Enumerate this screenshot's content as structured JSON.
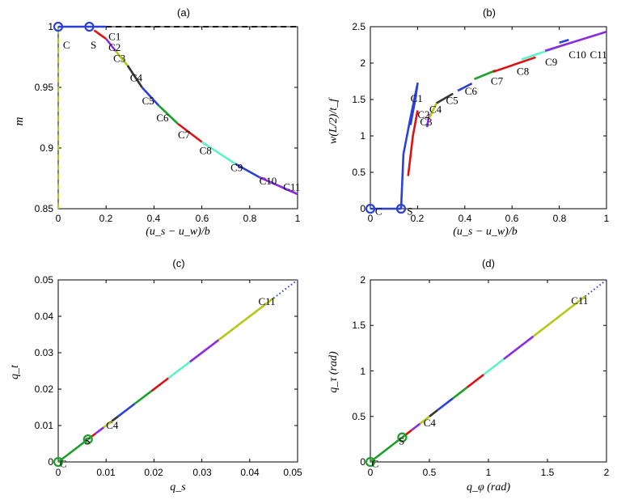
{
  "chart_data": [
    {
      "type": "line",
      "title": "(a)",
      "xlabel": "(u_s − u_w)/b",
      "ylabel": "m",
      "xlim": [
        0,
        1
      ],
      "ylim": [
        0.85,
        1.0
      ],
      "xticks": [
        "0",
        "0.2",
        "0.4",
        "0.6",
        "0.8",
        "1"
      ],
      "yticks": [
        "0.85",
        "0.9",
        "0.95",
        "1"
      ],
      "series": [
        {
          "name": "vertical-ref",
          "color": "#a6cc1f",
          "dash": true,
          "points": [
            [
              0,
              0.85
            ],
            [
              0,
              1.0
            ]
          ]
        },
        {
          "name": "horizontal-ref",
          "color": "#1a1a1a",
          "dash": true,
          "points": [
            [
              0.2,
              1.0
            ],
            [
              1.0,
              1.0
            ]
          ]
        },
        {
          "name": "C-S",
          "color": "#2a40d9",
          "points": [
            [
              0,
              1.0
            ],
            [
              0.13,
              1.0
            ]
          ]
        },
        {
          "name": "S-C1",
          "color": "#2a40d9",
          "points": [
            [
              0.13,
              1.0
            ],
            [
              0.2,
              1.0
            ]
          ]
        },
        {
          "name": "C1-C2",
          "color": "#dd1111",
          "points": [
            [
              0.15,
              0.997
            ],
            [
              0.2,
              0.99
            ]
          ]
        },
        {
          "name": "C2-C3",
          "color": "#8a2be2",
          "points": [
            [
              0.2,
              0.99
            ],
            [
              0.24,
              0.98
            ]
          ]
        },
        {
          "name": "C3-C4",
          "color": "#b5c81a",
          "points": [
            [
              0.24,
              0.98
            ],
            [
              0.29,
              0.968
            ]
          ]
        },
        {
          "name": "C4-C5",
          "color": "#333333",
          "points": [
            [
              0.29,
              0.968
            ],
            [
              0.35,
              0.95
            ]
          ]
        },
        {
          "name": "C5-C6",
          "color": "#2a40d9",
          "points": [
            [
              0.35,
              0.95
            ],
            [
              0.42,
              0.935
            ]
          ]
        },
        {
          "name": "C6-C7",
          "color": "#1e9e2a",
          "points": [
            [
              0.42,
              0.935
            ],
            [
              0.5,
              0.92
            ]
          ]
        },
        {
          "name": "C7-C8",
          "color": "#dd1111",
          "points": [
            [
              0.5,
              0.92
            ],
            [
              0.6,
              0.905
            ]
          ]
        },
        {
          "name": "C8-C9",
          "color": "#5ef0c8",
          "points": [
            [
              0.6,
              0.905
            ],
            [
              0.74,
              0.887
            ]
          ]
        },
        {
          "name": "C9-C10",
          "color": "#2a40d9",
          "points": [
            [
              0.74,
              0.887
            ],
            [
              0.84,
              0.876
            ]
          ]
        },
        {
          "name": "C10-C11",
          "color": "#8a2be2",
          "points": [
            [
              0.84,
              0.876
            ],
            [
              1.0,
              0.862
            ]
          ]
        }
      ],
      "markers": [
        {
          "x": 0,
          "y": 1.0,
          "color": "#2a40d9"
        },
        {
          "x": 0.13,
          "y": 1.0,
          "color": "#2a40d9"
        }
      ],
      "labels": [
        {
          "text": "C",
          "x": 0.02,
          "y": 0.99
        },
        {
          "text": "S",
          "x": 0.135,
          "y": 0.99
        },
        {
          "text": "C1",
          "x": 0.21,
          "y": 0.997
        },
        {
          "text": "C2",
          "x": 0.21,
          "y": 0.988
        },
        {
          "text": "C3",
          "x": 0.23,
          "y": 0.979
        },
        {
          "text": "C4",
          "x": 0.3,
          "y": 0.963
        },
        {
          "text": "C5",
          "x": 0.35,
          "y": 0.944
        },
        {
          "text": "C6",
          "x": 0.41,
          "y": 0.93
        },
        {
          "text": "C7",
          "x": 0.5,
          "y": 0.916
        },
        {
          "text": "C8",
          "x": 0.59,
          "y": 0.903
        },
        {
          "text": "C9",
          "x": 0.72,
          "y": 0.889
        },
        {
          "text": "C10",
          "x": 0.84,
          "y": 0.878
        },
        {
          "text": "C11",
          "x": 0.94,
          "y": 0.873
        }
      ]
    },
    {
      "type": "line",
      "title": "(b)",
      "xlabel": "(u_s − u_w)/b",
      "ylabel": "w(L/2)/t_f",
      "xlim": [
        0,
        1
      ],
      "ylim": [
        0,
        2.5
      ],
      "xticks": [
        "0",
        "0.2",
        "0.4",
        "0.6",
        "0.8",
        "1"
      ],
      "yticks": [
        "0",
        "0.5",
        "1",
        "1.5",
        "2",
        "2.5"
      ],
      "series": [
        {
          "name": "C-S",
          "color": "#2a40d9",
          "points": [
            [
              0,
              0
            ],
            [
              0.13,
              0
            ]
          ]
        },
        {
          "name": "S-C1",
          "color": "#2a40d9",
          "points": [
            [
              0.13,
              0
            ],
            [
              0.14,
              0.75
            ],
            [
              0.17,
              1.25
            ],
            [
              0.2,
              1.72
            ],
            [
              0.19,
              1.5
            ],
            [
              0.17,
              1.15
            ]
          ]
        },
        {
          "name": "C1-C2",
          "color": "#dd1111",
          "points": [
            [
              0.16,
              0.45
            ],
            [
              0.18,
              1.0
            ],
            [
              0.2,
              1.35
            ]
          ]
        },
        {
          "name": "C2-C3",
          "color": "#8a2be2",
          "points": [
            [
              0.24,
              1.12
            ],
            [
              0.25,
              1.3
            ]
          ]
        },
        {
          "name": "C3-C4",
          "color": "#b5c81a",
          "points": [
            [
              0.25,
              1.25
            ],
            [
              0.28,
              1.45
            ]
          ]
        },
        {
          "name": "C4-C5",
          "color": "#333333",
          "points": [
            [
              0.28,
              1.45
            ],
            [
              0.35,
              1.58
            ]
          ]
        },
        {
          "name": "C5-C6",
          "color": "#2a40d9",
          "points": [
            [
              0.37,
              1.62
            ],
            [
              0.43,
              1.72
            ]
          ]
        },
        {
          "name": "C6-C7",
          "color": "#1e9e2a",
          "points": [
            [
              0.44,
              1.78
            ],
            [
              0.53,
              1.9
            ]
          ]
        },
        {
          "name": "C7-C8",
          "color": "#dd1111",
          "points": [
            [
              0.52,
              1.88
            ],
            [
              0.7,
              2.08
            ]
          ]
        },
        {
          "name": "C8-C9",
          "color": "#5ef0c8",
          "points": [
            [
              0.64,
              2.05
            ],
            [
              0.84,
              2.27
            ]
          ]
        },
        {
          "name": "C9-C10",
          "color": "#2a40d9",
          "points": [
            [
              0.8,
              2.28
            ],
            [
              0.84,
              2.32
            ]
          ]
        },
        {
          "name": "C10-C11",
          "color": "#8a2be2",
          "points": [
            [
              0.74,
              2.17
            ],
            [
              1.0,
              2.43
            ]
          ]
        }
      ],
      "markers": [
        {
          "x": 0,
          "y": 0,
          "color": "#2a40d9"
        },
        {
          "x": 0.13,
          "y": 0,
          "color": "#2a40d9"
        }
      ],
      "labels": [
        {
          "text": "C",
          "x": 0.02,
          "y": 0.05
        },
        {
          "text": "S",
          "x": 0.155,
          "y": 0.05
        },
        {
          "text": "C1",
          "x": 0.17,
          "y": 1.6
        },
        {
          "text": "C2",
          "x": 0.2,
          "y": 1.38
        },
        {
          "text": "C3",
          "x": 0.21,
          "y": 1.28
        },
        {
          "text": "C4",
          "x": 0.25,
          "y": 1.45
        },
        {
          "text": "C5",
          "x": 0.32,
          "y": 1.57
        },
        {
          "text": "C6",
          "x": 0.4,
          "y": 1.7
        },
        {
          "text": "C7",
          "x": 0.51,
          "y": 1.84
        },
        {
          "text": "C8",
          "x": 0.62,
          "y": 1.97
        },
        {
          "text": "C9",
          "x": 0.74,
          "y": 2.1
        },
        {
          "text": "C10",
          "x": 0.84,
          "y": 2.2
        },
        {
          "text": "C11",
          "x": 0.93,
          "y": 2.2
        }
      ]
    },
    {
      "type": "line",
      "title": "(c)",
      "xlabel": "q_s",
      "ylabel": "q_t",
      "xlim": [
        0,
        0.05
      ],
      "ylim": [
        0,
        0.05
      ],
      "xticks": [
        "0",
        "0.01",
        "0.02",
        "0.03",
        "0.04",
        "0.05"
      ],
      "yticks": [
        "0",
        "0.01",
        "0.02",
        "0.03",
        "0.04",
        "0.05"
      ],
      "series": [
        {
          "name": "C-S",
          "color": "#1e9e2a",
          "points": [
            [
              0,
              0
            ],
            [
              0.0062,
              0.0062
            ]
          ]
        },
        {
          "name": "S-C1",
          "color": "#1e9e2a",
          "points": [
            [
              0.0062,
              0.0062
            ],
            [
              0.0068,
              0.0068
            ]
          ]
        },
        {
          "name": "C1-C2",
          "color": "#dd1111",
          "points": [
            [
              0.0068,
              0.0068
            ],
            [
              0.0078,
              0.0078
            ]
          ]
        },
        {
          "name": "C2-C3",
          "color": "#8a2be2",
          "points": [
            [
              0.0078,
              0.0078
            ],
            [
              0.0095,
              0.0095
            ]
          ]
        },
        {
          "name": "C3-C4",
          "color": "#b5c81a",
          "points": [
            [
              0.0095,
              0.0095
            ],
            [
              0.0112,
              0.0112
            ]
          ]
        },
        {
          "name": "C4-C5",
          "color": "#333333",
          "points": [
            [
              0.0112,
              0.0112
            ],
            [
              0.0125,
              0.0125
            ]
          ]
        },
        {
          "name": "C5-C6",
          "color": "#2a40d9",
          "points": [
            [
              0.0125,
              0.0125
            ],
            [
              0.016,
              0.016
            ]
          ]
        },
        {
          "name": "C6-C7",
          "color": "#1e9e2a",
          "points": [
            [
              0.016,
              0.016
            ],
            [
              0.0195,
              0.0195
            ]
          ]
        },
        {
          "name": "C7-C8",
          "color": "#dd1111",
          "points": [
            [
              0.0195,
              0.0195
            ],
            [
              0.023,
              0.023
            ]
          ]
        },
        {
          "name": "C8-C9",
          "color": "#5ef0c8",
          "points": [
            [
              0.023,
              0.023
            ],
            [
              0.0275,
              0.0275
            ]
          ]
        },
        {
          "name": "C9-C10",
          "color": "#8a2be2",
          "points": [
            [
              0.0275,
              0.0275
            ],
            [
              0.0335,
              0.0335
            ]
          ]
        },
        {
          "name": "C10-C11",
          "color": "#b5c81a",
          "points": [
            [
              0.0335,
              0.0335
            ],
            [
              0.045,
              0.045
            ]
          ]
        },
        {
          "name": "extension",
          "color": "#2a40d9",
          "dash": "dot",
          "points": [
            [
              0.045,
              0.045
            ],
            [
              0.05,
              0.05
            ]
          ]
        }
      ],
      "markers": [
        {
          "x": 0,
          "y": 0,
          "color": "#1e9e2a"
        },
        {
          "x": 0.0062,
          "y": 0.0062,
          "color": "#1e9e2a"
        }
      ],
      "labels": [
        {
          "text": "C",
          "x": 0.0003,
          "y": 0.0012
        },
        {
          "text": "S",
          "x": 0.0055,
          "y": 0.0075
        },
        {
          "text": "C4",
          "x": 0.01,
          "y": 0.0118
        },
        {
          "text": "C11",
          "x": 0.0418,
          "y": 0.0458
        }
      ]
    },
    {
      "type": "line",
      "title": "(d)",
      "xlabel": "q_φ (rad)",
      "ylabel": "q_τ (rad)",
      "xlim": [
        0,
        2
      ],
      "ylim": [
        0,
        2
      ],
      "xticks": [
        "0",
        "0.5",
        "1",
        "1.5",
        "2"
      ],
      "yticks": [
        "0",
        "0.5",
        "1",
        "1.5",
        "2"
      ],
      "series": [
        {
          "name": "C-S",
          "color": "#1e9e2a",
          "points": [
            [
              0,
              0
            ],
            [
              0.27,
              0.27
            ]
          ]
        },
        {
          "name": "S-C1",
          "color": "#1e9e2a",
          "points": [
            [
              0.27,
              0.27
            ],
            [
              0.3,
              0.3
            ]
          ]
        },
        {
          "name": "C1-C2",
          "color": "#dd1111",
          "points": [
            [
              0.3,
              0.3
            ],
            [
              0.35,
              0.35
            ]
          ]
        },
        {
          "name": "C2-C3",
          "color": "#8a2be2",
          "points": [
            [
              0.35,
              0.35
            ],
            [
              0.42,
              0.42
            ]
          ]
        },
        {
          "name": "C3-C4",
          "color": "#b5c81a",
          "points": [
            [
              0.42,
              0.42
            ],
            [
              0.5,
              0.5
            ]
          ]
        },
        {
          "name": "C4-C5",
          "color": "#333333",
          "points": [
            [
              0.5,
              0.5
            ],
            [
              0.57,
              0.57
            ]
          ]
        },
        {
          "name": "C5-C6",
          "color": "#2a40d9",
          "points": [
            [
              0.57,
              0.57
            ],
            [
              0.7,
              0.7
            ]
          ]
        },
        {
          "name": "C6-C7",
          "color": "#1e9e2a",
          "points": [
            [
              0.7,
              0.7
            ],
            [
              0.82,
              0.82
            ]
          ]
        },
        {
          "name": "C7-C8",
          "color": "#dd1111",
          "points": [
            [
              0.82,
              0.82
            ],
            [
              0.96,
              0.96
            ]
          ]
        },
        {
          "name": "C8-C9",
          "color": "#5ef0c8",
          "points": [
            [
              0.96,
              0.96
            ],
            [
              1.13,
              1.13
            ]
          ]
        },
        {
          "name": "C9-C10",
          "color": "#8a2be2",
          "points": [
            [
              1.13,
              1.13
            ],
            [
              1.38,
              1.38
            ]
          ]
        },
        {
          "name": "C10-C11",
          "color": "#b5c81a",
          "points": [
            [
              1.38,
              1.38
            ],
            [
              1.82,
              1.82
            ]
          ]
        },
        {
          "name": "extension",
          "color": "#2a40d9",
          "dash": "dot",
          "points": [
            [
              1.82,
              1.82
            ],
            [
              2.0,
              2.0
            ]
          ]
        }
      ],
      "markers": [
        {
          "x": 0,
          "y": 0,
          "color": "#1e9e2a"
        },
        {
          "x": 0.27,
          "y": 0.27,
          "color": "#1e9e2a"
        }
      ],
      "labels": [
        {
          "text": "C",
          "x": 0.01,
          "y": 0.05
        },
        {
          "text": "S",
          "x": 0.24,
          "y": 0.3
        },
        {
          "text": "C4",
          "x": 0.45,
          "y": 0.5
        },
        {
          "text": "C11",
          "x": 1.7,
          "y": 1.84
        }
      ]
    }
  ]
}
